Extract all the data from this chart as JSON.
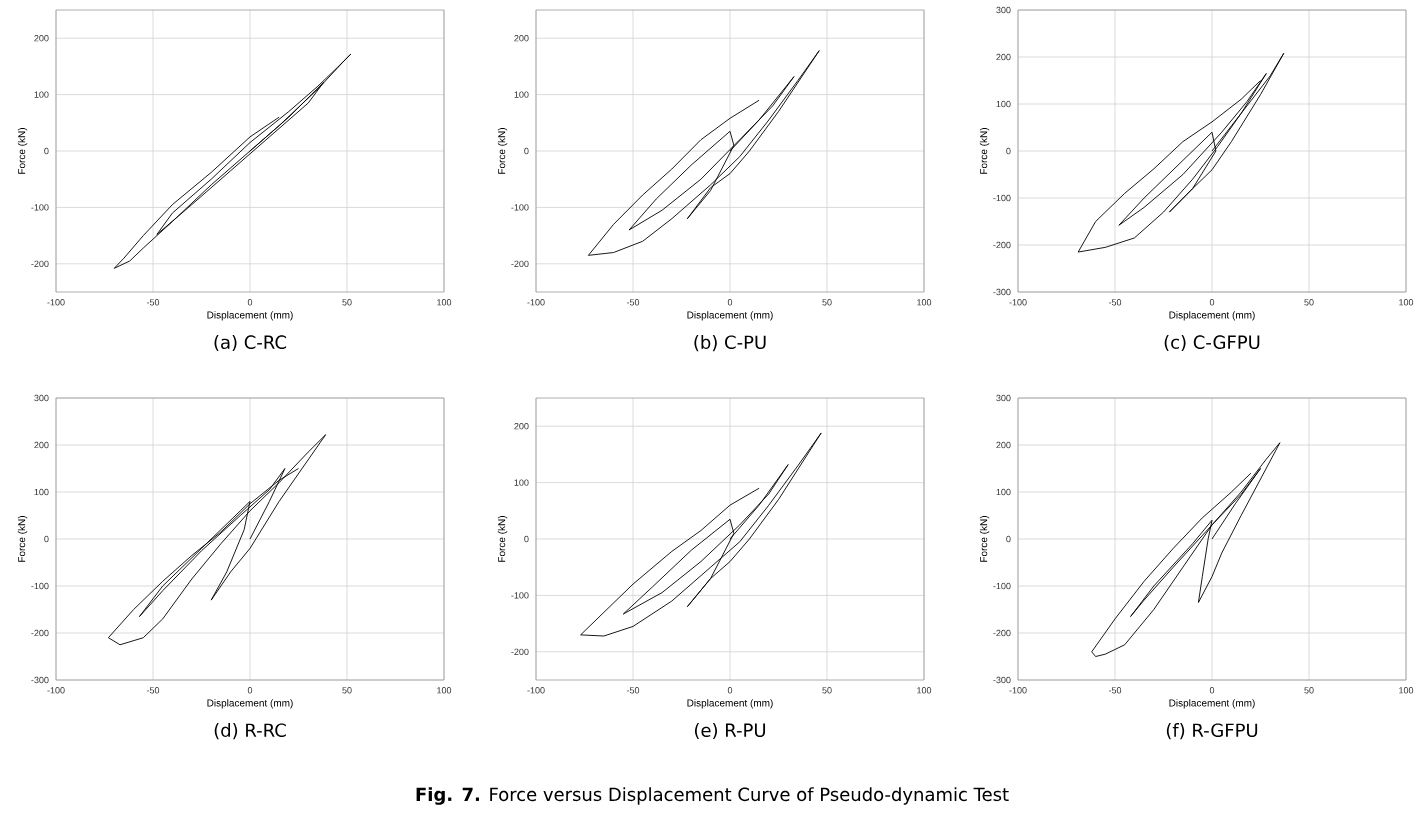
{
  "chart_data": [
    {
      "type": "line",
      "title": "(a) C-RC",
      "xlabel": "Displacement (mm)",
      "ylabel": "Force (kN)",
      "xlim": [
        -100,
        100
      ],
      "xticks": [
        -100,
        -50,
        0,
        50,
        100
      ],
      "ylim": [
        -250,
        250
      ],
      "yticks": [
        -200,
        -100,
        0,
        100,
        200
      ],
      "grid": true,
      "series": [
        {
          "color": "#000000",
          "x": [
            0,
            20,
            38,
            30,
            10,
            -10,
            -30,
            -48,
            -40,
            -20,
            0,
            20,
            35,
            45,
            52,
            48,
            35,
            15,
            0,
            -20,
            -40,
            -55,
            -62,
            -70,
            -65,
            -55,
            -40,
            -20,
            0,
            15
          ],
          "values": [
            0,
            60,
            122,
            85,
            25,
            -35,
            -95,
            -148,
            -110,
            -50,
            15,
            70,
            115,
            148,
            172,
            158,
            110,
            45,
            0,
            -60,
            -125,
            -172,
            -195,
            -208,
            -190,
            -150,
            -95,
            -38,
            25,
            60
          ]
        }
      ]
    },
    {
      "type": "line",
      "title": "(b) C-PU",
      "xlabel": "Displacement (mm)",
      "ylabel": "Force (kN)",
      "xlim": [
        -100,
        100
      ],
      "xticks": [
        -100,
        -50,
        0,
        50,
        100
      ],
      "ylim": [
        -250,
        250
      ],
      "yticks": [
        -200,
        -100,
        0,
        100,
        200
      ],
      "grid": true,
      "series": [
        {
          "color": "#000000",
          "x": [
            0,
            15,
            33,
            22,
            5,
            -15,
            -35,
            -52,
            -38,
            -20,
            0,
            2,
            -10,
            -22,
            -10,
            0,
            10,
            25,
            46,
            35,
            20,
            5,
            -10,
            -30,
            -45,
            -60,
            -73,
            -60,
            -45,
            -30,
            -15,
            0,
            15
          ],
          "values": [
            0,
            55,
            132,
            80,
            20,
            -50,
            -105,
            -140,
            -85,
            -25,
            35,
            10,
            -70,
            -120,
            -65,
            -40,
            0,
            70,
            178,
            125,
            55,
            -10,
            -60,
            -120,
            -160,
            -180,
            -185,
            -130,
            -78,
            -32,
            20,
            58,
            90
          ]
        }
      ]
    },
    {
      "type": "line",
      "title": "(c) C-GFPU",
      "xlabel": "Displacement (mm)",
      "ylabel": "Force (kN)",
      "xlim": [
        -100,
        100
      ],
      "xticks": [
        -100,
        -50,
        0,
        50,
        100
      ],
      "ylim": [
        -300,
        300
      ],
      "yticks": [
        -300,
        -200,
        -100,
        0,
        100,
        200,
        300
      ],
      "grid": true,
      "series": [
        {
          "color": "#000000",
          "x": [
            0,
            15,
            28,
            18,
            5,
            -15,
            -35,
            -48,
            -35,
            -15,
            0,
            2,
            -10,
            -22,
            -10,
            0,
            10,
            25,
            37,
            30,
            15,
            3,
            -10,
            -25,
            -40,
            -55,
            -69,
            -60,
            -45,
            -30,
            -15,
            0,
            15,
            25
          ],
          "values": [
            0,
            80,
            165,
            105,
            40,
            -50,
            -120,
            -158,
            -100,
            -20,
            40,
            0,
            -80,
            -130,
            -80,
            -40,
            20,
            120,
            208,
            160,
            80,
            10,
            -60,
            -130,
            -185,
            -205,
            -215,
            -150,
            -90,
            -38,
            20,
            62,
            110,
            150
          ]
        }
      ]
    },
    {
      "type": "line",
      "title": "(d) R-RC",
      "xlabel": "Displacement (mm)",
      "ylabel": "Force (kN)",
      "xlim": [
        -100,
        100
      ],
      "xticks": [
        -100,
        -50,
        0,
        50,
        100
      ],
      "ylim": [
        -300,
        300
      ],
      "yticks": [
        -300,
        -200,
        -100,
        0,
        100,
        200,
        300
      ],
      "grid": true,
      "series": [
        {
          "color": "#000000",
          "x": [
            0,
            10,
            18,
            10,
            -5,
            -25,
            -45,
            -57,
            -45,
            -25,
            -5,
            0,
            -3,
            -12,
            -20,
            -10,
            0,
            15,
            39,
            30,
            15,
            0,
            -15,
            -30,
            -45,
            -55,
            -67,
            -73,
            -60,
            -45,
            -30,
            -15,
            0,
            15,
            25
          ],
          "values": [
            0,
            80,
            150,
            105,
            50,
            -25,
            -110,
            -165,
            -100,
            -20,
            60,
            80,
            20,
            -70,
            -130,
            -70,
            -20,
            80,
            222,
            185,
            120,
            60,
            -10,
            -85,
            -170,
            -210,
            -225,
            -210,
            -150,
            -90,
            -35,
            15,
            75,
            125,
            150
          ]
        }
      ]
    },
    {
      "type": "line",
      "title": "(e) R-PU",
      "xlabel": "Displacement (mm)",
      "ylabel": "Force (kN)",
      "xlim": [
        -100,
        100
      ],
      "xticks": [
        -100,
        -50,
        0,
        50,
        100
      ],
      "ylim": [
        -250,
        250
      ],
      "yticks": [
        -200,
        -100,
        0,
        100,
        200
      ],
      "grid": true,
      "series": [
        {
          "color": "#000000",
          "x": [
            0,
            15,
            30,
            20,
            5,
            -15,
            -35,
            -55,
            -40,
            -20,
            0,
            2,
            -10,
            -22,
            -10,
            0,
            10,
            25,
            47,
            35,
            20,
            5,
            -10,
            -30,
            -50,
            -65,
            -77,
            -65,
            -50,
            -30,
            -15,
            0,
            15
          ],
          "values": [
            0,
            60,
            132,
            80,
            25,
            -40,
            -95,
            -133,
            -85,
            -20,
            35,
            10,
            -70,
            -120,
            -70,
            -40,
            0,
            70,
            188,
            130,
            60,
            -5,
            -50,
            -110,
            -155,
            -172,
            -170,
            -130,
            -80,
            -22,
            15,
            60,
            90
          ]
        }
      ]
    },
    {
      "type": "line",
      "title": "(f) R-GFPU",
      "xlabel": "Displacement (mm)",
      "ylabel": "Force (kN)",
      "xlim": [
        -100,
        100
      ],
      "xticks": [
        -100,
        -50,
        0,
        50,
        100
      ],
      "ylim": [
        -300,
        300
      ],
      "yticks": [
        -300,
        -200,
        -100,
        0,
        100,
        200,
        300
      ],
      "grid": true,
      "annotations": [
        "**Fig. 7.** Force versus Displacement Curve of Pseudo-dynamic Test"
      ],
      "series": [
        {
          "color": "#000000",
          "x": [
            0,
            12,
            25,
            15,
            0,
            -20,
            -35,
            -42,
            -30,
            -10,
            0,
            -2,
            -5,
            -7,
            0,
            5,
            15,
            35,
            28,
            15,
            0,
            -15,
            -30,
            -45,
            -55,
            -60,
            -62,
            -50,
            -35,
            -20,
            -5,
            10,
            20
          ],
          "values": [
            0,
            75,
            150,
            95,
            30,
            -60,
            -130,
            -165,
            -100,
            -10,
            40,
            0,
            -80,
            -135,
            -80,
            -30,
            50,
            205,
            170,
            100,
            30,
            -60,
            -150,
            -225,
            -245,
            -250,
            -240,
            -170,
            -90,
            -20,
            45,
            100,
            140
          ]
        }
      ]
    }
  ]
}
